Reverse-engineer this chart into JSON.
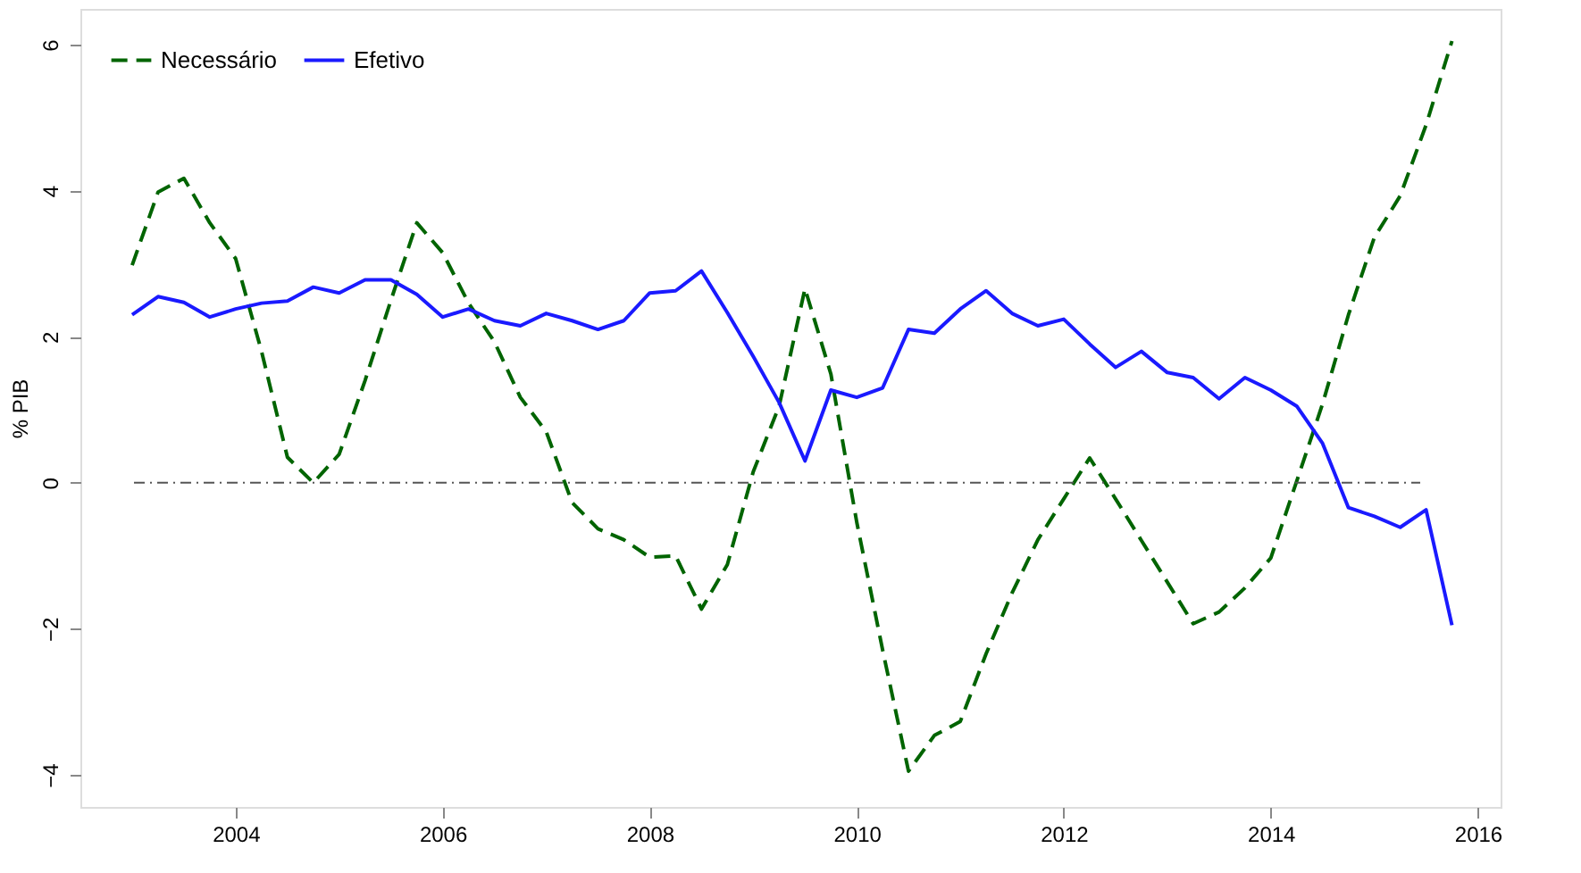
{
  "chart_data": {
    "type": "line",
    "ylabel": "% PIB",
    "x": [
      2003,
      2003.25,
      2003.5,
      2003.75,
      2004,
      2004.25,
      2004.5,
      2004.75,
      2005,
      2005.25,
      2005.5,
      2005.75,
      2006,
      2006.25,
      2006.5,
      2006.75,
      2007,
      2007.25,
      2007.5,
      2007.75,
      2008,
      2008.25,
      2008.5,
      2008.75,
      2009,
      2009.25,
      2009.5,
      2009.75,
      2010,
      2010.25,
      2010.5,
      2010.75,
      2011,
      2011.25,
      2011.5,
      2011.75,
      2012,
      2012.25,
      2012.5,
      2012.75,
      2013,
      2013.25,
      2013.5,
      2013.75,
      2014,
      2014.25,
      2014.5,
      2014.75,
      2015,
      2015.25,
      2015.5,
      2015.75
    ],
    "series": [
      {
        "name": "Necessário",
        "color": "#006400",
        "line_style": "dashed",
        "values": [
          2.98,
          3.98,
          4.17,
          3.56,
          3.07,
          1.8,
          0.35,
          0.0,
          0.39,
          1.4,
          2.5,
          3.56,
          3.15,
          2.46,
          1.93,
          1.17,
          0.7,
          -0.27,
          -0.63,
          -0.78,
          -1.02,
          -1.0,
          -1.73,
          -1.12,
          0.15,
          1.05,
          2.66,
          1.49,
          -0.54,
          -2.29,
          -3.95,
          -3.46,
          -3.27,
          -2.34,
          -1.51,
          -0.78,
          -0.22,
          0.34,
          -0.22,
          -0.79,
          -1.36,
          -1.93,
          -1.77,
          -1.44,
          -1.03,
          0.02,
          1.08,
          2.3,
          3.36,
          3.93,
          4.9,
          6.05
        ]
      },
      {
        "name": "Efetivo",
        "color": "#1a1aff",
        "line_style": "solid",
        "values": [
          2.3,
          2.55,
          2.47,
          2.27,
          2.38,
          2.46,
          2.49,
          2.68,
          2.6,
          2.78,
          2.78,
          2.58,
          2.27,
          2.38,
          2.22,
          2.15,
          2.32,
          2.22,
          2.1,
          2.22,
          2.6,
          2.63,
          2.9,
          2.33,
          1.73,
          1.1,
          0.3,
          1.27,
          1.17,
          1.3,
          2.1,
          2.05,
          2.38,
          2.63,
          2.32,
          2.15,
          2.24,
          1.9,
          1.58,
          1.8,
          1.51,
          1.44,
          1.15,
          1.44,
          1.27,
          1.05,
          0.54,
          -0.34,
          -0.46,
          -0.61,
          -0.37,
          -1.95
        ]
      }
    ],
    "xlim": [
      2002.5,
      2016.22
    ],
    "xticks": [
      2004,
      2006,
      2008,
      2010,
      2012,
      2014,
      2016
    ],
    "ylim": [
      -4.44,
      6.49
    ],
    "yticks": [
      -4,
      -2,
      0,
      2,
      4,
      6
    ],
    "ref_lines": [
      {
        "axis": "y",
        "value": 0,
        "color": "#555555",
        "line_style": "dashdot"
      }
    ],
    "grid": false,
    "legend": "top left",
    "marker": "none"
  }
}
